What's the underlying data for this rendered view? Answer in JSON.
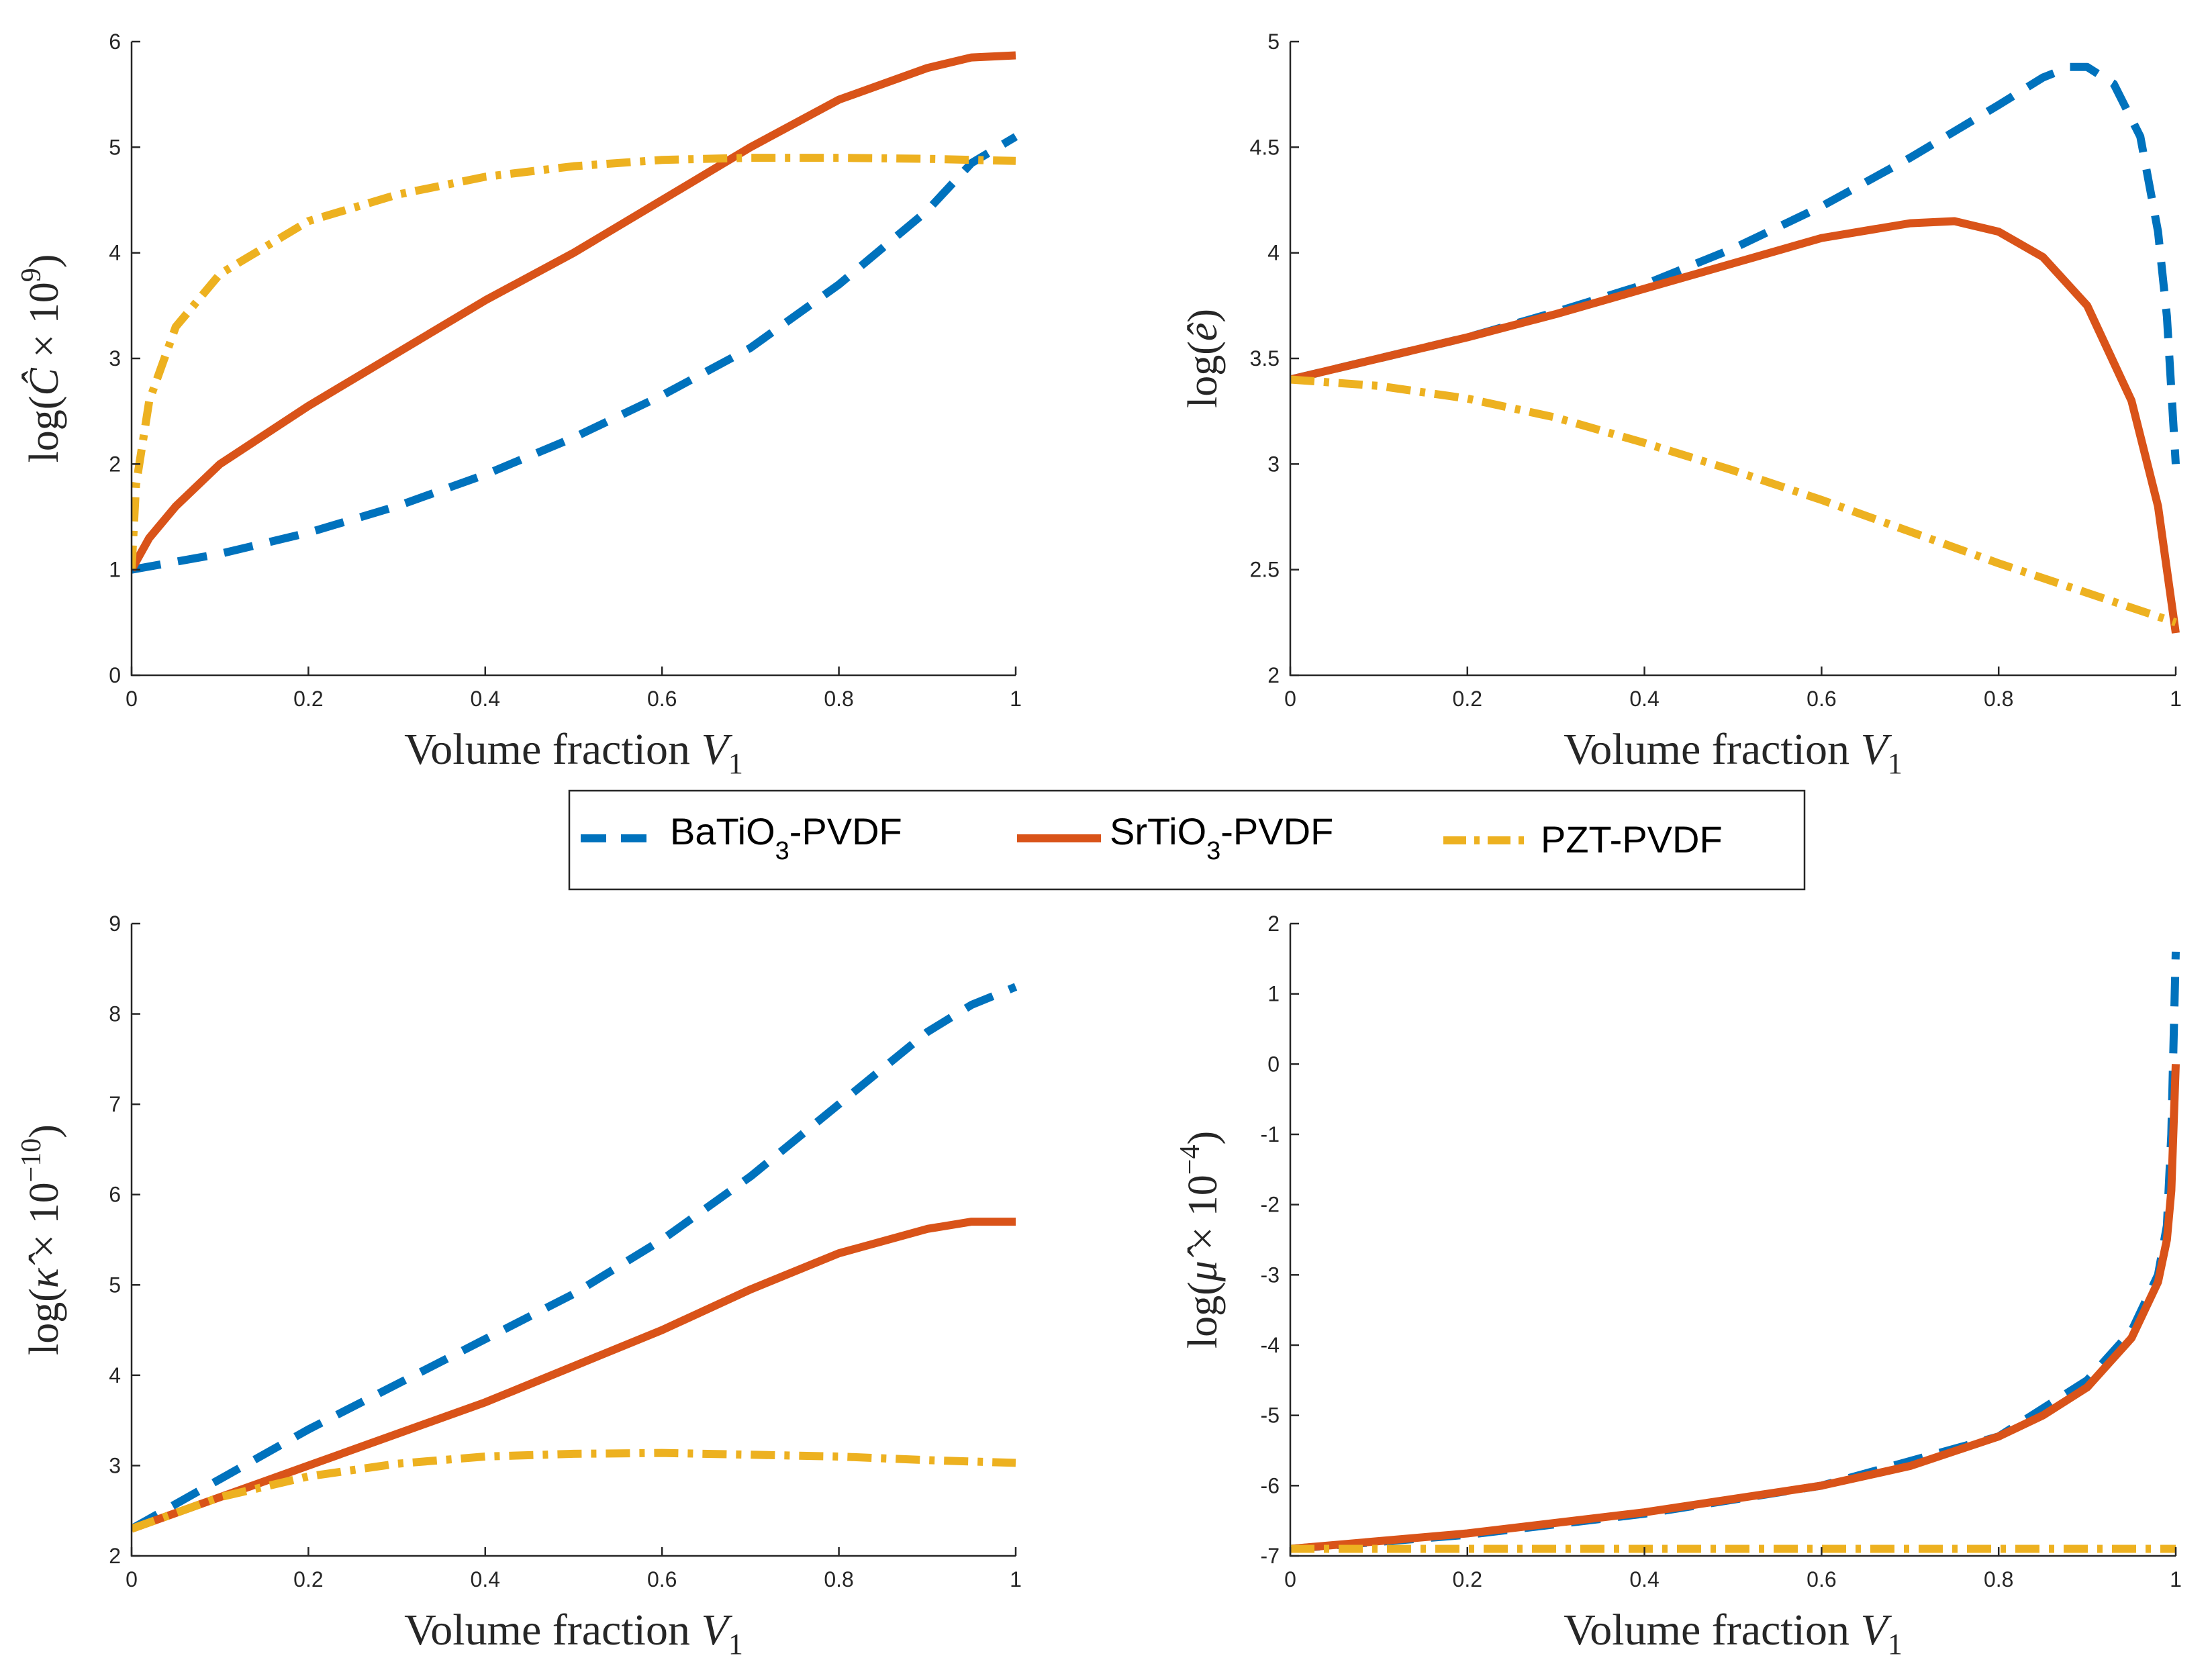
{
  "legend": {
    "entries": [
      {
        "label_pre": "BaTiO",
        "label_sub": "3",
        "label_post": "-PVDF",
        "color": "#0072BD",
        "style": "dash"
      },
      {
        "label_pre": "SrTiO",
        "label_sub": "3",
        "label_post": "-PVDF",
        "color": "#D95319",
        "style": "solid"
      },
      {
        "label_pre": "PZT-PVDF",
        "label_sub": "",
        "label_post": "",
        "color": "#EDB120",
        "style": "dashdot"
      }
    ]
  },
  "chart_data": [
    {
      "type": "line",
      "xlabel_pre": "Volume fraction ",
      "xlabel_var": "V",
      "xlabel_sub": "1",
      "ylabel_pre": "log(",
      "ylabel_var": "Ĉ",
      "ylabel_mid": " × 10",
      "ylabel_sup": "9",
      "ylabel_post": ")",
      "xlim": [
        0,
        1
      ],
      "ylim": [
        0,
        6
      ],
      "xticks": [
        0,
        0.2,
        0.4,
        0.6,
        0.8,
        1
      ],
      "xtick_labels": [
        "0",
        "0.2",
        "0.4",
        "0.6",
        "0.8",
        "1"
      ],
      "yticks": [
        0,
        1,
        2,
        3,
        4,
        5,
        6
      ],
      "ytick_labels": [
        "0",
        "1",
        "2",
        "3",
        "4",
        "5",
        "6"
      ],
      "series": [
        {
          "name": "BaTiO3-PVDF",
          "x": [
            0,
            0.1,
            0.2,
            0.3,
            0.4,
            0.5,
            0.6,
            0.7,
            0.8,
            0.9,
            0.95,
            1.0
          ],
          "y": [
            1.0,
            1.15,
            1.35,
            1.6,
            1.9,
            2.25,
            2.65,
            3.1,
            3.7,
            4.4,
            4.85,
            5.1
          ]
        },
        {
          "name": "SrTiO3-PVDF",
          "x": [
            0,
            0.02,
            0.05,
            0.1,
            0.2,
            0.3,
            0.4,
            0.5,
            0.6,
            0.7,
            0.8,
            0.9,
            0.95,
            1.0
          ],
          "y": [
            1.0,
            1.3,
            1.6,
            2.0,
            2.55,
            3.05,
            3.55,
            4.0,
            4.5,
            5.0,
            5.45,
            5.75,
            5.85,
            5.87
          ]
        },
        {
          "name": "PZT-PVDF",
          "x": [
            0,
            0.005,
            0.02,
            0.05,
            0.1,
            0.2,
            0.3,
            0.4,
            0.5,
            0.6,
            0.7,
            0.8,
            0.9,
            1.0
          ],
          "y": [
            1.0,
            1.8,
            2.6,
            3.3,
            3.8,
            4.3,
            4.55,
            4.72,
            4.82,
            4.88,
            4.9,
            4.9,
            4.89,
            4.87
          ]
        }
      ]
    },
    {
      "type": "line",
      "xlabel_pre": "Volume fraction ",
      "xlabel_var": "V",
      "xlabel_sub": "1",
      "ylabel_pre": "log(",
      "ylabel_var": "ê",
      "ylabel_mid": "",
      "ylabel_sup": "",
      "ylabel_post": ")",
      "xlim": [
        0,
        1
      ],
      "ylim": [
        2,
        5
      ],
      "xticks": [
        0,
        0.2,
        0.4,
        0.6,
        0.8,
        1
      ],
      "xtick_labels": [
        "0",
        "0.2",
        "0.4",
        "0.6",
        "0.8",
        "1"
      ],
      "yticks": [
        2,
        2.5,
        3,
        3.5,
        4,
        4.5,
        5
      ],
      "ytick_labels": [
        "2",
        "2.5",
        "3",
        "3.5",
        "4",
        "4.5",
        "5"
      ],
      "series": [
        {
          "name": "BaTiO3-PVDF",
          "x": [
            0,
            0.1,
            0.2,
            0.3,
            0.4,
            0.5,
            0.6,
            0.7,
            0.8,
            0.85,
            0.88,
            0.9,
            0.93,
            0.96,
            0.98,
            0.99,
            1.0
          ],
          "y": [
            3.4,
            3.5,
            3.6,
            3.72,
            3.85,
            4.02,
            4.22,
            4.45,
            4.7,
            4.83,
            4.88,
            4.88,
            4.8,
            4.55,
            4.1,
            3.7,
            3.0
          ]
        },
        {
          "name": "SrTiO3-PVDF",
          "x": [
            0,
            0.1,
            0.2,
            0.3,
            0.4,
            0.5,
            0.6,
            0.7,
            0.75,
            0.8,
            0.85,
            0.9,
            0.95,
            0.98,
            1.0
          ],
          "y": [
            3.4,
            3.5,
            3.6,
            3.71,
            3.83,
            3.95,
            4.07,
            4.14,
            4.15,
            4.1,
            3.98,
            3.75,
            3.3,
            2.8,
            2.2
          ]
        },
        {
          "name": "PZT-PVDF",
          "x": [
            0,
            0.1,
            0.2,
            0.3,
            0.4,
            0.5,
            0.6,
            0.7,
            0.8,
            0.9,
            1.0
          ],
          "y": [
            3.4,
            3.37,
            3.31,
            3.22,
            3.1,
            2.97,
            2.83,
            2.68,
            2.53,
            2.39,
            2.25
          ]
        }
      ]
    },
    {
      "type": "line",
      "xlabel_pre": "Volume fraction ",
      "xlabel_var": "V",
      "xlabel_sub": "1",
      "ylabel_pre": "log(",
      "ylabel_var": "κ̂",
      "ylabel_mid": " × 10",
      "ylabel_sup": "−10",
      "ylabel_post": ")",
      "xlim": [
        0,
        1
      ],
      "ylim": [
        2,
        9
      ],
      "xticks": [
        0,
        0.2,
        0.4,
        0.6,
        0.8,
        1
      ],
      "xtick_labels": [
        "0",
        "0.2",
        "0.4",
        "0.6",
        "0.8",
        "1"
      ],
      "yticks": [
        2,
        3,
        4,
        5,
        6,
        7,
        8,
        9
      ],
      "ytick_labels": [
        "2",
        "3",
        "4",
        "5",
        "6",
        "7",
        "8",
        "9"
      ],
      "series": [
        {
          "name": "BaTiO3-PVDF",
          "x": [
            0,
            0.1,
            0.2,
            0.3,
            0.4,
            0.5,
            0.6,
            0.7,
            0.8,
            0.9,
            0.95,
            1.0
          ],
          "y": [
            2.3,
            2.85,
            3.4,
            3.9,
            4.4,
            4.9,
            5.5,
            6.2,
            7.0,
            7.8,
            8.1,
            8.3
          ]
        },
        {
          "name": "SrTiO3-PVDF",
          "x": [
            0,
            0.1,
            0.2,
            0.3,
            0.4,
            0.5,
            0.6,
            0.7,
            0.8,
            0.9,
            0.95,
            1.0
          ],
          "y": [
            2.3,
            2.65,
            3.0,
            3.35,
            3.7,
            4.1,
            4.5,
            4.95,
            5.35,
            5.62,
            5.7,
            5.7
          ]
        },
        {
          "name": "PZT-PVDF",
          "x": [
            0,
            0.1,
            0.2,
            0.3,
            0.4,
            0.5,
            0.6,
            0.7,
            0.8,
            0.9,
            1.0
          ],
          "y": [
            2.3,
            2.65,
            2.88,
            3.02,
            3.1,
            3.13,
            3.14,
            3.12,
            3.1,
            3.06,
            3.03
          ]
        }
      ]
    },
    {
      "type": "line",
      "xlabel_pre": "Volume fraction ",
      "xlabel_var": "V",
      "xlabel_sub": "1",
      "ylabel_pre": "log(",
      "ylabel_var": "μ̂",
      "ylabel_mid": " × 10",
      "ylabel_sup": "−4",
      "ylabel_post": ")",
      "xlim": [
        0,
        1
      ],
      "ylim": [
        -7,
        2
      ],
      "xticks": [
        0,
        0.2,
        0.4,
        0.6,
        0.8,
        1
      ],
      "xtick_labels": [
        "0",
        "0.2",
        "0.4",
        "0.6",
        "0.8",
        "1"
      ],
      "yticks": [
        -7,
        -6,
        -5,
        -4,
        -3,
        -2,
        -1,
        0,
        1,
        2
      ],
      "ytick_labels": [
        "-7",
        "-6",
        "-5",
        "-4",
        "-3",
        "-2",
        "-1",
        "0",
        "1",
        "2"
      ],
      "series": [
        {
          "name": "BaTiO3-PVDF",
          "x": [
            0,
            0.2,
            0.4,
            0.6,
            0.8,
            0.9,
            0.95,
            0.98,
            0.99,
            0.995,
            1.0
          ],
          "y": [
            -6.9,
            -6.7,
            -6.4,
            -6.0,
            -5.3,
            -4.5,
            -3.8,
            -3.0,
            -2.3,
            -1.0,
            1.6
          ]
        },
        {
          "name": "SrTiO3-PVDF",
          "x": [
            0,
            0.2,
            0.4,
            0.6,
            0.7,
            0.8,
            0.85,
            0.9,
            0.95,
            0.98,
            0.99,
            0.995,
            1.0
          ],
          "y": [
            -6.9,
            -6.68,
            -6.38,
            -6.0,
            -5.72,
            -5.3,
            -5.0,
            -4.6,
            -3.9,
            -3.1,
            -2.5,
            -1.8,
            0.0
          ]
        },
        {
          "name": "PZT-PVDF",
          "x": [
            0,
            0.2,
            0.4,
            0.6,
            0.8,
            1.0
          ],
          "y": [
            -6.9,
            -6.9,
            -6.9,
            -6.9,
            -6.9,
            -6.9
          ]
        }
      ]
    }
  ]
}
